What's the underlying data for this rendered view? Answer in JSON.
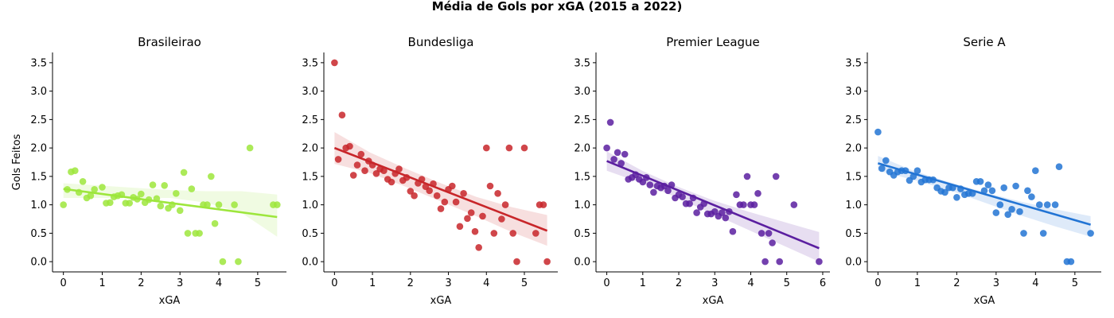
{
  "figure": {
    "title": "Média de Gols por xGA (2015 a 2022)"
  },
  "chart_data": [
    {
      "type": "scatter",
      "title": "Brasileirao",
      "xlabel": "xGA",
      "ylabel": "Gols Feitos",
      "color": "#9de63c",
      "xlim": [
        -0.28,
        5.74
      ],
      "ylim": [
        -0.18,
        3.68
      ],
      "xticks": [
        0,
        1,
        2,
        3,
        4,
        5
      ],
      "yticks": [
        0.0,
        0.5,
        1.0,
        1.5,
        2.0,
        2.5,
        3.0,
        3.5
      ],
      "grid": false,
      "regression": {
        "slope": -0.09,
        "intercept": 1.28,
        "x_range": [
          0,
          5.5
        ]
      },
      "band": {
        "upper": [
          1.38,
          1.34,
          1.3,
          1.26,
          1.24,
          1.24,
          1.18
        ],
        "lower": [
          1.12,
          1.12,
          1.12,
          1.12,
          1.04,
          0.86,
          0.44
        ]
      },
      "points": [
        {
          "x": 0.0,
          "y": 1.0
        },
        {
          "x": 0.1,
          "y": 1.27
        },
        {
          "x": 0.2,
          "y": 1.58
        },
        {
          "x": 0.3,
          "y": 1.6
        },
        {
          "x": 0.4,
          "y": 1.22
        },
        {
          "x": 0.5,
          "y": 1.41
        },
        {
          "x": 0.6,
          "y": 1.12
        },
        {
          "x": 0.7,
          "y": 1.16
        },
        {
          "x": 0.8,
          "y": 1.27
        },
        {
          "x": 1.0,
          "y": 1.31
        },
        {
          "x": 1.1,
          "y": 1.03
        },
        {
          "x": 1.2,
          "y": 1.04
        },
        {
          "x": 1.3,
          "y": 1.14
        },
        {
          "x": 1.4,
          "y": 1.16
        },
        {
          "x": 1.5,
          "y": 1.18
        },
        {
          "x": 1.6,
          "y": 1.03
        },
        {
          "x": 1.7,
          "y": 1.03
        },
        {
          "x": 1.8,
          "y": 1.13
        },
        {
          "x": 1.9,
          "y": 1.1
        },
        {
          "x": 2.0,
          "y": 1.19
        },
        {
          "x": 2.1,
          "y": 1.04
        },
        {
          "x": 2.2,
          "y": 1.09
        },
        {
          "x": 2.3,
          "y": 1.35
        },
        {
          "x": 2.4,
          "y": 1.11
        },
        {
          "x": 2.5,
          "y": 0.98
        },
        {
          "x": 2.6,
          "y": 1.34
        },
        {
          "x": 2.7,
          "y": 0.94
        },
        {
          "x": 2.8,
          "y": 1.0
        },
        {
          "x": 2.9,
          "y": 1.2
        },
        {
          "x": 3.0,
          "y": 0.9
        },
        {
          "x": 3.1,
          "y": 1.57
        },
        {
          "x": 3.2,
          "y": 0.5
        },
        {
          "x": 3.3,
          "y": 1.28
        },
        {
          "x": 3.4,
          "y": 0.5
        },
        {
          "x": 3.5,
          "y": 0.5
        },
        {
          "x": 3.6,
          "y": 1.0
        },
        {
          "x": 3.7,
          "y": 1.0
        },
        {
          "x": 3.8,
          "y": 1.5
        },
        {
          "x": 3.9,
          "y": 0.67
        },
        {
          "x": 4.0,
          "y": 1.0
        },
        {
          "x": 4.1,
          "y": 0.0
        },
        {
          "x": 4.4,
          "y": 1.0
        },
        {
          "x": 4.5,
          "y": 0.0
        },
        {
          "x": 4.8,
          "y": 2.0
        },
        {
          "x": 5.4,
          "y": 1.0
        },
        {
          "x": 5.5,
          "y": 1.0
        }
      ]
    },
    {
      "type": "scatter",
      "title": "Bundesliga",
      "xlabel": "xGA",
      "ylabel": "",
      "color": "#c8262a",
      "xlim": [
        -0.28,
        5.88
      ],
      "ylim": [
        -0.18,
        3.68
      ],
      "xticks": [
        0,
        1,
        2,
        3,
        4,
        5
      ],
      "yticks": [
        0.0,
        0.5,
        1.0,
        1.5,
        2.0,
        2.5,
        3.0,
        3.5
      ],
      "grid": false,
      "regression": {
        "slope": -0.26,
        "intercept": 2.0,
        "x_range": [
          0,
          5.6
        ]
      },
      "band": {
        "upper": [
          2.28,
          1.92,
          1.64,
          1.38,
          1.14,
          0.96,
          0.82
        ],
        "lower": [
          1.72,
          1.56,
          1.32,
          1.06,
          0.8,
          0.52,
          0.28
        ]
      },
      "points": [
        {
          "x": 0.0,
          "y": 3.5
        },
        {
          "x": 0.1,
          "y": 1.8
        },
        {
          "x": 0.2,
          "y": 2.58
        },
        {
          "x": 0.3,
          "y": 2.0
        },
        {
          "x": 0.4,
          "y": 2.03
        },
        {
          "x": 0.5,
          "y": 1.52
        },
        {
          "x": 0.6,
          "y": 1.7
        },
        {
          "x": 0.7,
          "y": 1.89
        },
        {
          "x": 0.8,
          "y": 1.6
        },
        {
          "x": 0.9,
          "y": 1.77
        },
        {
          "x": 1.0,
          "y": 1.7
        },
        {
          "x": 1.1,
          "y": 1.55
        },
        {
          "x": 1.2,
          "y": 1.63
        },
        {
          "x": 1.3,
          "y": 1.6
        },
        {
          "x": 1.4,
          "y": 1.45
        },
        {
          "x": 1.5,
          "y": 1.4
        },
        {
          "x": 1.6,
          "y": 1.55
        },
        {
          "x": 1.7,
          "y": 1.63
        },
        {
          "x": 1.8,
          "y": 1.43
        },
        {
          "x": 1.9,
          "y": 1.48
        },
        {
          "x": 2.0,
          "y": 1.24
        },
        {
          "x": 2.1,
          "y": 1.16
        },
        {
          "x": 2.2,
          "y": 1.38
        },
        {
          "x": 2.3,
          "y": 1.45
        },
        {
          "x": 2.4,
          "y": 1.32
        },
        {
          "x": 2.5,
          "y": 1.25
        },
        {
          "x": 2.6,
          "y": 1.37
        },
        {
          "x": 2.7,
          "y": 1.16
        },
        {
          "x": 2.8,
          "y": 0.93
        },
        {
          "x": 2.9,
          "y": 1.05
        },
        {
          "x": 3.0,
          "y": 1.27
        },
        {
          "x": 3.1,
          "y": 1.33
        },
        {
          "x": 3.2,
          "y": 1.05
        },
        {
          "x": 3.3,
          "y": 0.62
        },
        {
          "x": 3.4,
          "y": 1.2
        },
        {
          "x": 3.5,
          "y": 0.76
        },
        {
          "x": 3.6,
          "y": 0.86
        },
        {
          "x": 3.7,
          "y": 0.53
        },
        {
          "x": 3.8,
          "y": 0.25
        },
        {
          "x": 3.9,
          "y": 0.8
        },
        {
          "x": 4.0,
          "y": 2.0
        },
        {
          "x": 4.1,
          "y": 1.33
        },
        {
          "x": 4.2,
          "y": 0.5
        },
        {
          "x": 4.3,
          "y": 1.2
        },
        {
          "x": 4.4,
          "y": 0.75
        },
        {
          "x": 4.5,
          "y": 1.0
        },
        {
          "x": 4.6,
          "y": 2.0
        },
        {
          "x": 4.7,
          "y": 0.5
        },
        {
          "x": 4.8,
          "y": 0.0
        },
        {
          "x": 5.0,
          "y": 2.0
        },
        {
          "x": 5.3,
          "y": 0.5
        },
        {
          "x": 5.4,
          "y": 1.0
        },
        {
          "x": 5.5,
          "y": 1.0
        },
        {
          "x": 5.6,
          "y": 0.0
        }
      ]
    },
    {
      "type": "scatter",
      "title": "Premier League",
      "xlabel": "xGA",
      "ylabel": "",
      "color": "#5b1fa0",
      "xlim": [
        -0.3,
        6.2
      ],
      "ylim": [
        -0.18,
        3.68
      ],
      "xticks": [
        0,
        1,
        2,
        3,
        4,
        5,
        6
      ],
      "yticks": [
        0.0,
        0.5,
        1.0,
        1.5,
        2.0,
        2.5,
        3.0,
        3.5
      ],
      "grid": false,
      "regression": {
        "slope": -0.26,
        "intercept": 1.77,
        "x_range": [
          0,
          5.9
        ]
      },
      "band": {
        "upper": [
          1.94,
          1.6,
          1.32,
          1.08,
          0.88,
          0.7,
          0.52
        ],
        "lower": [
          1.6,
          1.38,
          1.12,
          0.84,
          0.56,
          0.28,
          0.0
        ]
      },
      "points": [
        {
          "x": 0.0,
          "y": 2.0
        },
        {
          "x": 0.1,
          "y": 2.45
        },
        {
          "x": 0.2,
          "y": 1.8
        },
        {
          "x": 0.3,
          "y": 1.92
        },
        {
          "x": 0.4,
          "y": 1.73
        },
        {
          "x": 0.5,
          "y": 1.89
        },
        {
          "x": 0.6,
          "y": 1.45
        },
        {
          "x": 0.7,
          "y": 1.48
        },
        {
          "x": 0.8,
          "y": 1.53
        },
        {
          "x": 0.9,
          "y": 1.45
        },
        {
          "x": 1.0,
          "y": 1.4
        },
        {
          "x": 1.1,
          "y": 1.48
        },
        {
          "x": 1.2,
          "y": 1.35
        },
        {
          "x": 1.3,
          "y": 1.22
        },
        {
          "x": 1.4,
          "y": 1.33
        },
        {
          "x": 1.5,
          "y": 1.3
        },
        {
          "x": 1.6,
          "y": 1.33
        },
        {
          "x": 1.7,
          "y": 1.25
        },
        {
          "x": 1.8,
          "y": 1.35
        },
        {
          "x": 1.9,
          "y": 1.12
        },
        {
          "x": 2.0,
          "y": 1.18
        },
        {
          "x": 2.1,
          "y": 1.14
        },
        {
          "x": 2.2,
          "y": 1.02
        },
        {
          "x": 2.3,
          "y": 1.02
        },
        {
          "x": 2.4,
          "y": 1.12
        },
        {
          "x": 2.5,
          "y": 0.86
        },
        {
          "x": 2.6,
          "y": 0.96
        },
        {
          "x": 2.7,
          "y": 1.02
        },
        {
          "x": 2.8,
          "y": 0.84
        },
        {
          "x": 2.9,
          "y": 0.84
        },
        {
          "x": 3.0,
          "y": 0.88
        },
        {
          "x": 3.1,
          "y": 0.8
        },
        {
          "x": 3.2,
          "y": 0.86
        },
        {
          "x": 3.3,
          "y": 0.77
        },
        {
          "x": 3.4,
          "y": 0.88
        },
        {
          "x": 3.5,
          "y": 0.53
        },
        {
          "x": 3.6,
          "y": 1.18
        },
        {
          "x": 3.7,
          "y": 1.0
        },
        {
          "x": 3.8,
          "y": 1.0
        },
        {
          "x": 3.9,
          "y": 1.5
        },
        {
          "x": 4.0,
          "y": 1.0
        },
        {
          "x": 4.1,
          "y": 1.0
        },
        {
          "x": 4.2,
          "y": 1.2
        },
        {
          "x": 4.3,
          "y": 0.5
        },
        {
          "x": 4.4,
          "y": 0.0
        },
        {
          "x": 4.5,
          "y": 0.5
        },
        {
          "x": 4.6,
          "y": 0.33
        },
        {
          "x": 4.7,
          "y": 1.5
        },
        {
          "x": 4.8,
          "y": 0.0
        },
        {
          "x": 5.2,
          "y": 1.0
        },
        {
          "x": 5.9,
          "y": 0.0
        }
      ]
    },
    {
      "type": "scatter",
      "title": "Serie A",
      "xlabel": "xGA",
      "ylabel": "",
      "color": "#2274d4",
      "xlim": [
        -0.27,
        5.67
      ],
      "ylim": [
        -0.18,
        3.68
      ],
      "xticks": [
        0,
        1,
        2,
        3,
        4,
        5
      ],
      "yticks": [
        0.0,
        0.5,
        1.0,
        1.5,
        2.0,
        2.5,
        3.0,
        3.5
      ],
      "grid": false,
      "regression": {
        "slope": -0.2,
        "intercept": 1.73,
        "x_range": [
          0,
          5.4
        ]
      },
      "band": {
        "upper": [
          1.86,
          1.6,
          1.4,
          1.22,
          1.06,
          0.92,
          0.8
        ],
        "lower": [
          1.6,
          1.44,
          1.26,
          1.04,
          0.82,
          0.62,
          0.44
        ]
      },
      "points": [
        {
          "x": 0.0,
          "y": 2.28
        },
        {
          "x": 0.1,
          "y": 1.64
        },
        {
          "x": 0.2,
          "y": 1.78
        },
        {
          "x": 0.3,
          "y": 1.58
        },
        {
          "x": 0.4,
          "y": 1.52
        },
        {
          "x": 0.5,
          "y": 1.58
        },
        {
          "x": 0.6,
          "y": 1.6
        },
        {
          "x": 0.7,
          "y": 1.6
        },
        {
          "x": 0.8,
          "y": 1.43
        },
        {
          "x": 0.9,
          "y": 1.5
        },
        {
          "x": 1.0,
          "y": 1.6
        },
        {
          "x": 1.1,
          "y": 1.4
        },
        {
          "x": 1.2,
          "y": 1.44
        },
        {
          "x": 1.3,
          "y": 1.44
        },
        {
          "x": 1.4,
          "y": 1.44
        },
        {
          "x": 1.5,
          "y": 1.3
        },
        {
          "x": 1.6,
          "y": 1.24
        },
        {
          "x": 1.7,
          "y": 1.22
        },
        {
          "x": 1.8,
          "y": 1.3
        },
        {
          "x": 1.9,
          "y": 1.3
        },
        {
          "x": 2.0,
          "y": 1.13
        },
        {
          "x": 2.1,
          "y": 1.28
        },
        {
          "x": 2.2,
          "y": 1.18
        },
        {
          "x": 2.3,
          "y": 1.2
        },
        {
          "x": 2.4,
          "y": 1.2
        },
        {
          "x": 2.5,
          "y": 1.41
        },
        {
          "x": 2.6,
          "y": 1.41
        },
        {
          "x": 2.7,
          "y": 1.25
        },
        {
          "x": 2.8,
          "y": 1.35
        },
        {
          "x": 2.9,
          "y": 1.25
        },
        {
          "x": 3.0,
          "y": 0.86
        },
        {
          "x": 3.1,
          "y": 1.0
        },
        {
          "x": 3.2,
          "y": 1.3
        },
        {
          "x": 3.3,
          "y": 0.83
        },
        {
          "x": 3.4,
          "y": 0.92
        },
        {
          "x": 3.5,
          "y": 1.33
        },
        {
          "x": 3.6,
          "y": 0.88
        },
        {
          "x": 3.7,
          "y": 0.5
        },
        {
          "x": 3.8,
          "y": 1.25
        },
        {
          "x": 3.9,
          "y": 1.14
        },
        {
          "x": 4.0,
          "y": 1.6
        },
        {
          "x": 4.1,
          "y": 1.0
        },
        {
          "x": 4.2,
          "y": 0.5
        },
        {
          "x": 4.3,
          "y": 1.0
        },
        {
          "x": 4.5,
          "y": 1.0
        },
        {
          "x": 4.6,
          "y": 1.67
        },
        {
          "x": 4.8,
          "y": 0.0
        },
        {
          "x": 4.9,
          "y": 0.0
        },
        {
          "x": 5.4,
          "y": 0.5
        }
      ]
    }
  ]
}
